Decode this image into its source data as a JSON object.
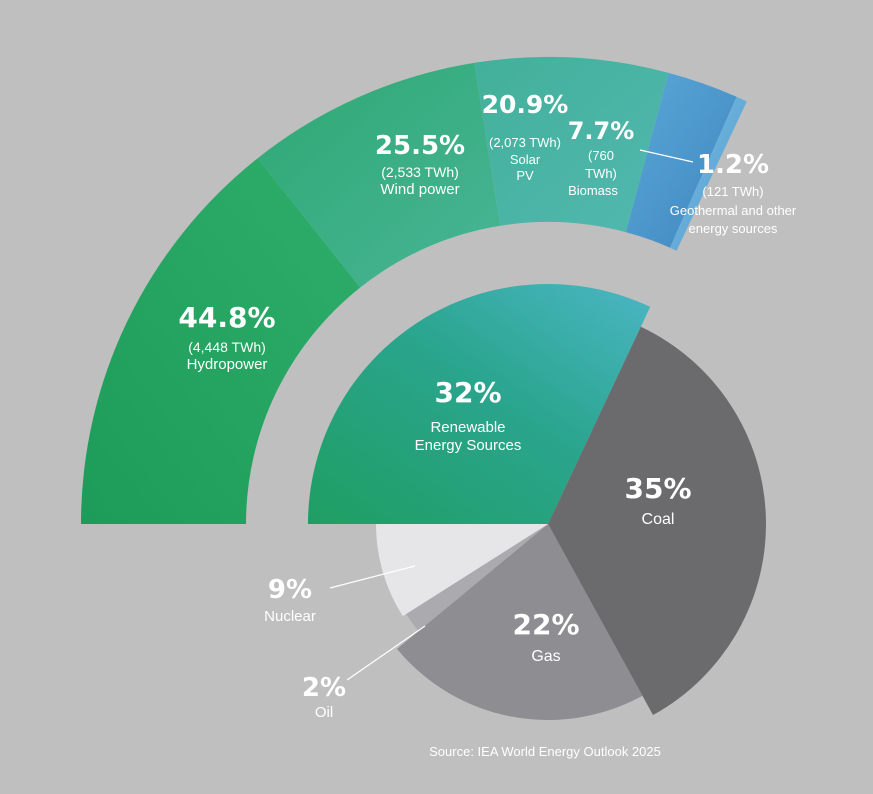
{
  "chart_data": [
    {
      "type": "pie",
      "title": "",
      "slices": [
        {
          "key": "ren",
          "value": 32,
          "label_pct": "32%",
          "label": "Renewable Energy Sources",
          "color": "#2fa88e"
        },
        {
          "key": "coal",
          "value": 35,
          "label_pct": "35%",
          "label": "Coal",
          "color": "#6b6b6e"
        },
        {
          "key": "gas",
          "value": 22,
          "label_pct": "22%",
          "label": "Gas",
          "color": "#8e8e92"
        },
        {
          "key": "oil",
          "value": 2,
          "label_pct": "2%",
          "label": "Oil",
          "color": "#ababaf"
        },
        {
          "key": "nuc",
          "value": 9,
          "label_pct": "9%",
          "label": "Nuclear",
          "color": "#e6e6e8"
        }
      ]
    },
    {
      "type": "pie",
      "title": "",
      "unit": "TWh",
      "slices": [
        {
          "key": "hydro",
          "value": 44.8,
          "twh": 4448,
          "label_pct": "44.8%",
          "label_twh": "(4,448 TWh)",
          "label": "Hydropower",
          "color": "#2aa565"
        },
        {
          "key": "wind",
          "value": 25.5,
          "twh": 2533,
          "label_pct": "25.5%",
          "label_twh": "(2,533 TWh)",
          "label": "Wind power",
          "color": "#3fb28a"
        },
        {
          "key": "solar",
          "value": 20.9,
          "twh": 2073,
          "label_pct": "20.9%",
          "label_twh": "(2,073 TWh)",
          "label": "Solar PV",
          "color": "#48b5a4"
        },
        {
          "key": "bio",
          "value": 7.7,
          "twh": 760,
          "label_pct": "7.7%",
          "label_twh": "(760 TWh)",
          "label": "Biomass",
          "color": "#4a95c7"
        },
        {
          "key": "geo",
          "value": 1.2,
          "twh": 121,
          "label_pct": "1.2%",
          "label_twh": "(121 TWh)",
          "label": "Geothermal and other energy sources",
          "color": "#5aa3d6"
        }
      ]
    }
  ],
  "source": "Source: IEA World Energy Outlook 2025"
}
